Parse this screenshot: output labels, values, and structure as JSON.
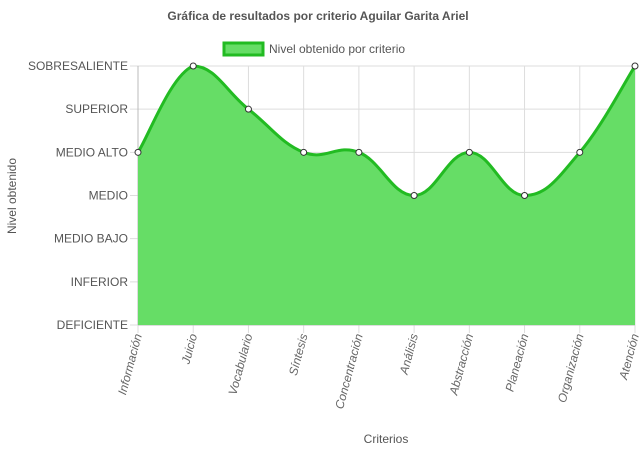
{
  "chart_data": {
    "type": "area",
    "title": "Gráfica de resultados por criterio Aguilar Garita Ariel",
    "xlabel": "Criterios",
    "ylabel": "Nivel obtenido",
    "y_levels": [
      "DEFICIENTE",
      "INFERIOR",
      "MEDIO BAJO",
      "MEDIO",
      "MEDIO ALTO",
      "SUPERIOR",
      "SOBRESALIENTE"
    ],
    "ylim": [
      0,
      6
    ],
    "categories": [
      "Información",
      "Juicio",
      "Vocabulario",
      "Síntesis",
      "Concentración",
      "Análisis",
      "Abstracción",
      "Planeación",
      "Organización",
      "Atención"
    ],
    "series": [
      {
        "name": "Nivel obtenido por criterio",
        "values": [
          4,
          6,
          5,
          4,
          4,
          3,
          4,
          3,
          4,
          6
        ]
      }
    ],
    "legend_position": "top-center",
    "grid": true,
    "colors": {
      "fill": "#66dd66",
      "stroke": "#22bb22"
    }
  }
}
